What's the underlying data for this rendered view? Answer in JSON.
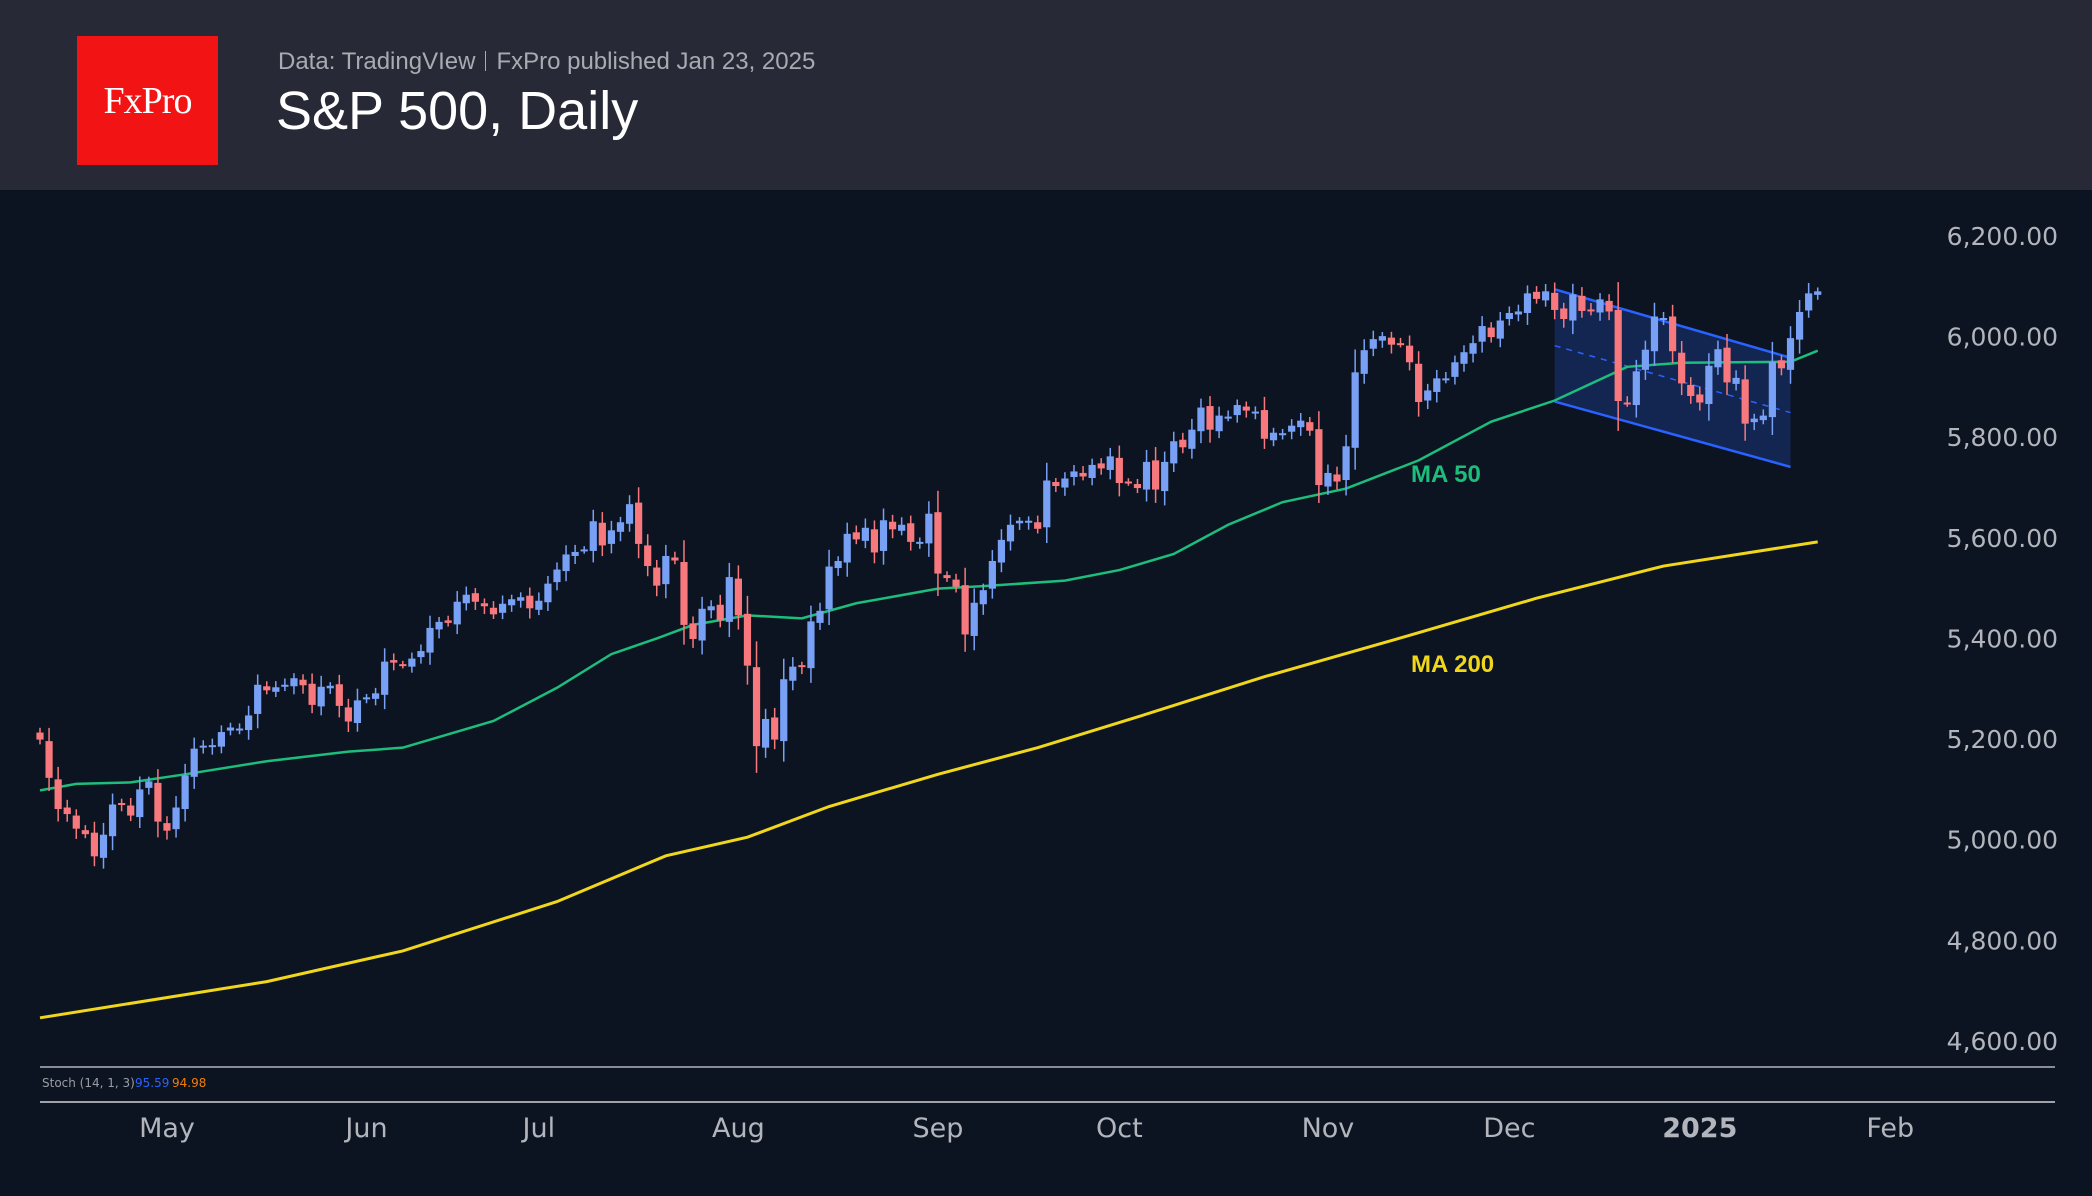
{
  "header": {
    "logo_text": "FxPro",
    "source": "Data: TradingVIew",
    "published": "FxPro published Jan 23, 2025",
    "title": "S&P 500, Daily"
  },
  "colors": {
    "up": "#78a0f5",
    "down": "#f7787d",
    "ma50": "#1dbd7c",
    "ma200": "#f0d71c",
    "channel": "#2962ff",
    "stoch_k": "#2962ff",
    "stoch_d": "#f57c00"
  },
  "stoch": {
    "label": "Stoch (14, 1, 3)",
    "k": "95.59",
    "d": "94.98"
  },
  "chart_data": {
    "type": "candlestick",
    "title": "S&P 500, Daily",
    "ylim": [
      4600,
      6200
    ],
    "y_ticks": [
      "6,200.00",
      "6,000.00",
      "5,800.00",
      "5,600.00",
      "5,400.00",
      "5,200.00",
      "5,000.00",
      "4,800.00",
      "4,600.00"
    ],
    "y_tick_values": [
      6200,
      6000,
      5800,
      5600,
      5400,
      5200,
      5000,
      4800,
      4600
    ],
    "x_ticks": [
      {
        "label": "May",
        "bar": 14
      },
      {
        "label": "Jun",
        "bar": 36
      },
      {
        "label": "Jul",
        "bar": 55
      },
      {
        "label": "Aug",
        "bar": 77
      },
      {
        "label": "Sep",
        "bar": 99
      },
      {
        "label": "Oct",
        "bar": 119
      },
      {
        "label": "Nov",
        "bar": 142
      },
      {
        "label": "Dec",
        "bar": 162
      },
      {
        "label": "2025",
        "bar": 183,
        "bold": true
      },
      {
        "label": "Feb",
        "bar": 204
      }
    ],
    "close": [
      5199,
      5123,
      5061,
      5051,
      5022,
      5011,
      4967,
      5010,
      5070,
      5071,
      5048,
      5100,
      5116,
      5036,
      5018,
      5064,
      5128,
      5181,
      5187,
      5188,
      5214,
      5223,
      5221,
      5247,
      5308,
      5297,
      5303,
      5308,
      5321,
      5307,
      5268,
      5304,
      5306,
      5266,
      5235,
      5277,
      5283,
      5291,
      5354,
      5352,
      5347,
      5360,
      5375,
      5421,
      5433,
      5431,
      5473,
      5487,
      5473,
      5464,
      5448,
      5469,
      5478,
      5482,
      5460,
      5475,
      5509,
      5537,
      5567,
      5572,
      5577,
      5633,
      5585,
      5615,
      5631,
      5667,
      5588,
      5544,
      5505,
      5564,
      5555,
      5427,
      5399,
      5459,
      5464,
      5436,
      5522,
      5446,
      5346,
      5186,
      5240,
      5199,
      5319,
      5344,
      5344,
      5434,
      5455,
      5543,
      5554,
      5608,
      5597,
      5620,
      5571,
      5635,
      5617,
      5626,
      5592,
      5592,
      5648,
      5529,
      5520,
      5503,
      5408,
      5471,
      5496,
      5554,
      5596,
      5626,
      5634,
      5634,
      5618,
      5714,
      5703,
      5718,
      5732,
      5722,
      5745,
      5738,
      5762,
      5709,
      5710,
      5699,
      5751,
      5696,
      5751,
      5792,
      5780,
      5815,
      5859,
      5815,
      5843,
      5841,
      5864,
      5853,
      5851,
      5797,
      5809,
      5808,
      5823,
      5833,
      5813,
      5705,
      5729,
      5712,
      5782,
      5929,
      5973,
      5995,
      6001,
      5984,
      5985,
      5949,
      5870,
      5893,
      5917,
      5917,
      5949,
      5969,
      5987,
      6021,
      5999,
      6032,
      6047,
      6050,
      6086,
      6075,
      6090,
      6053,
      6035,
      6084,
      6051,
      6051,
      6074,
      6050,
      5872,
      5867,
      5931,
      5974,
      6040,
      6037,
      5971,
      5907,
      5882,
      5869,
      5942,
      5975,
      5909,
      5918,
      5827,
      5837,
      5843,
      5950,
      5937,
      5997,
      6049,
      6086,
      6090
    ],
    "first_open": 5210,
    "ma50": {
      "label": "MA 50",
      "points": [
        [
          0,
          5098
        ],
        [
          4,
          5111
        ],
        [
          10,
          5114
        ],
        [
          16,
          5130
        ],
        [
          25,
          5156
        ],
        [
          34,
          5175
        ],
        [
          40,
          5183
        ],
        [
          50,
          5236
        ],
        [
          57,
          5302
        ],
        [
          63,
          5369
        ],
        [
          68,
          5400
        ],
        [
          72,
          5427
        ],
        [
          78,
          5446
        ],
        [
          84,
          5440
        ],
        [
          90,
          5470
        ],
        [
          99,
          5499
        ],
        [
          104,
          5504
        ],
        [
          113,
          5515
        ],
        [
          119,
          5536
        ],
        [
          125,
          5568
        ],
        [
          131,
          5626
        ],
        [
          137,
          5671
        ],
        [
          144,
          5698
        ],
        [
          152,
          5754
        ],
        [
          160,
          5831
        ],
        [
          167,
          5873
        ],
        [
          175,
          5940
        ],
        [
          181,
          5948
        ],
        [
          193,
          5950
        ],
        [
          196,
          5972
        ]
      ]
    },
    "ma200": {
      "label": "MA 200",
      "points": [
        [
          0,
          4646
        ],
        [
          25,
          4718
        ],
        [
          40,
          4779
        ],
        [
          57,
          4877
        ],
        [
          69,
          4968
        ],
        [
          78,
          5005
        ],
        [
          87,
          5066
        ],
        [
          99,
          5130
        ],
        [
          110,
          5183
        ],
        [
          121,
          5244
        ],
        [
          135,
          5324
        ],
        [
          150,
          5401
        ],
        [
          165,
          5480
        ],
        [
          179,
          5544
        ],
        [
          196,
          5592
        ]
      ]
    },
    "channel": {
      "start_bar": 167,
      "end_bar": 193,
      "upper": [
        6094,
        5958
      ],
      "middle": [
        5982,
        5849
      ],
      "lower": [
        5871,
        5741
      ]
    }
  }
}
